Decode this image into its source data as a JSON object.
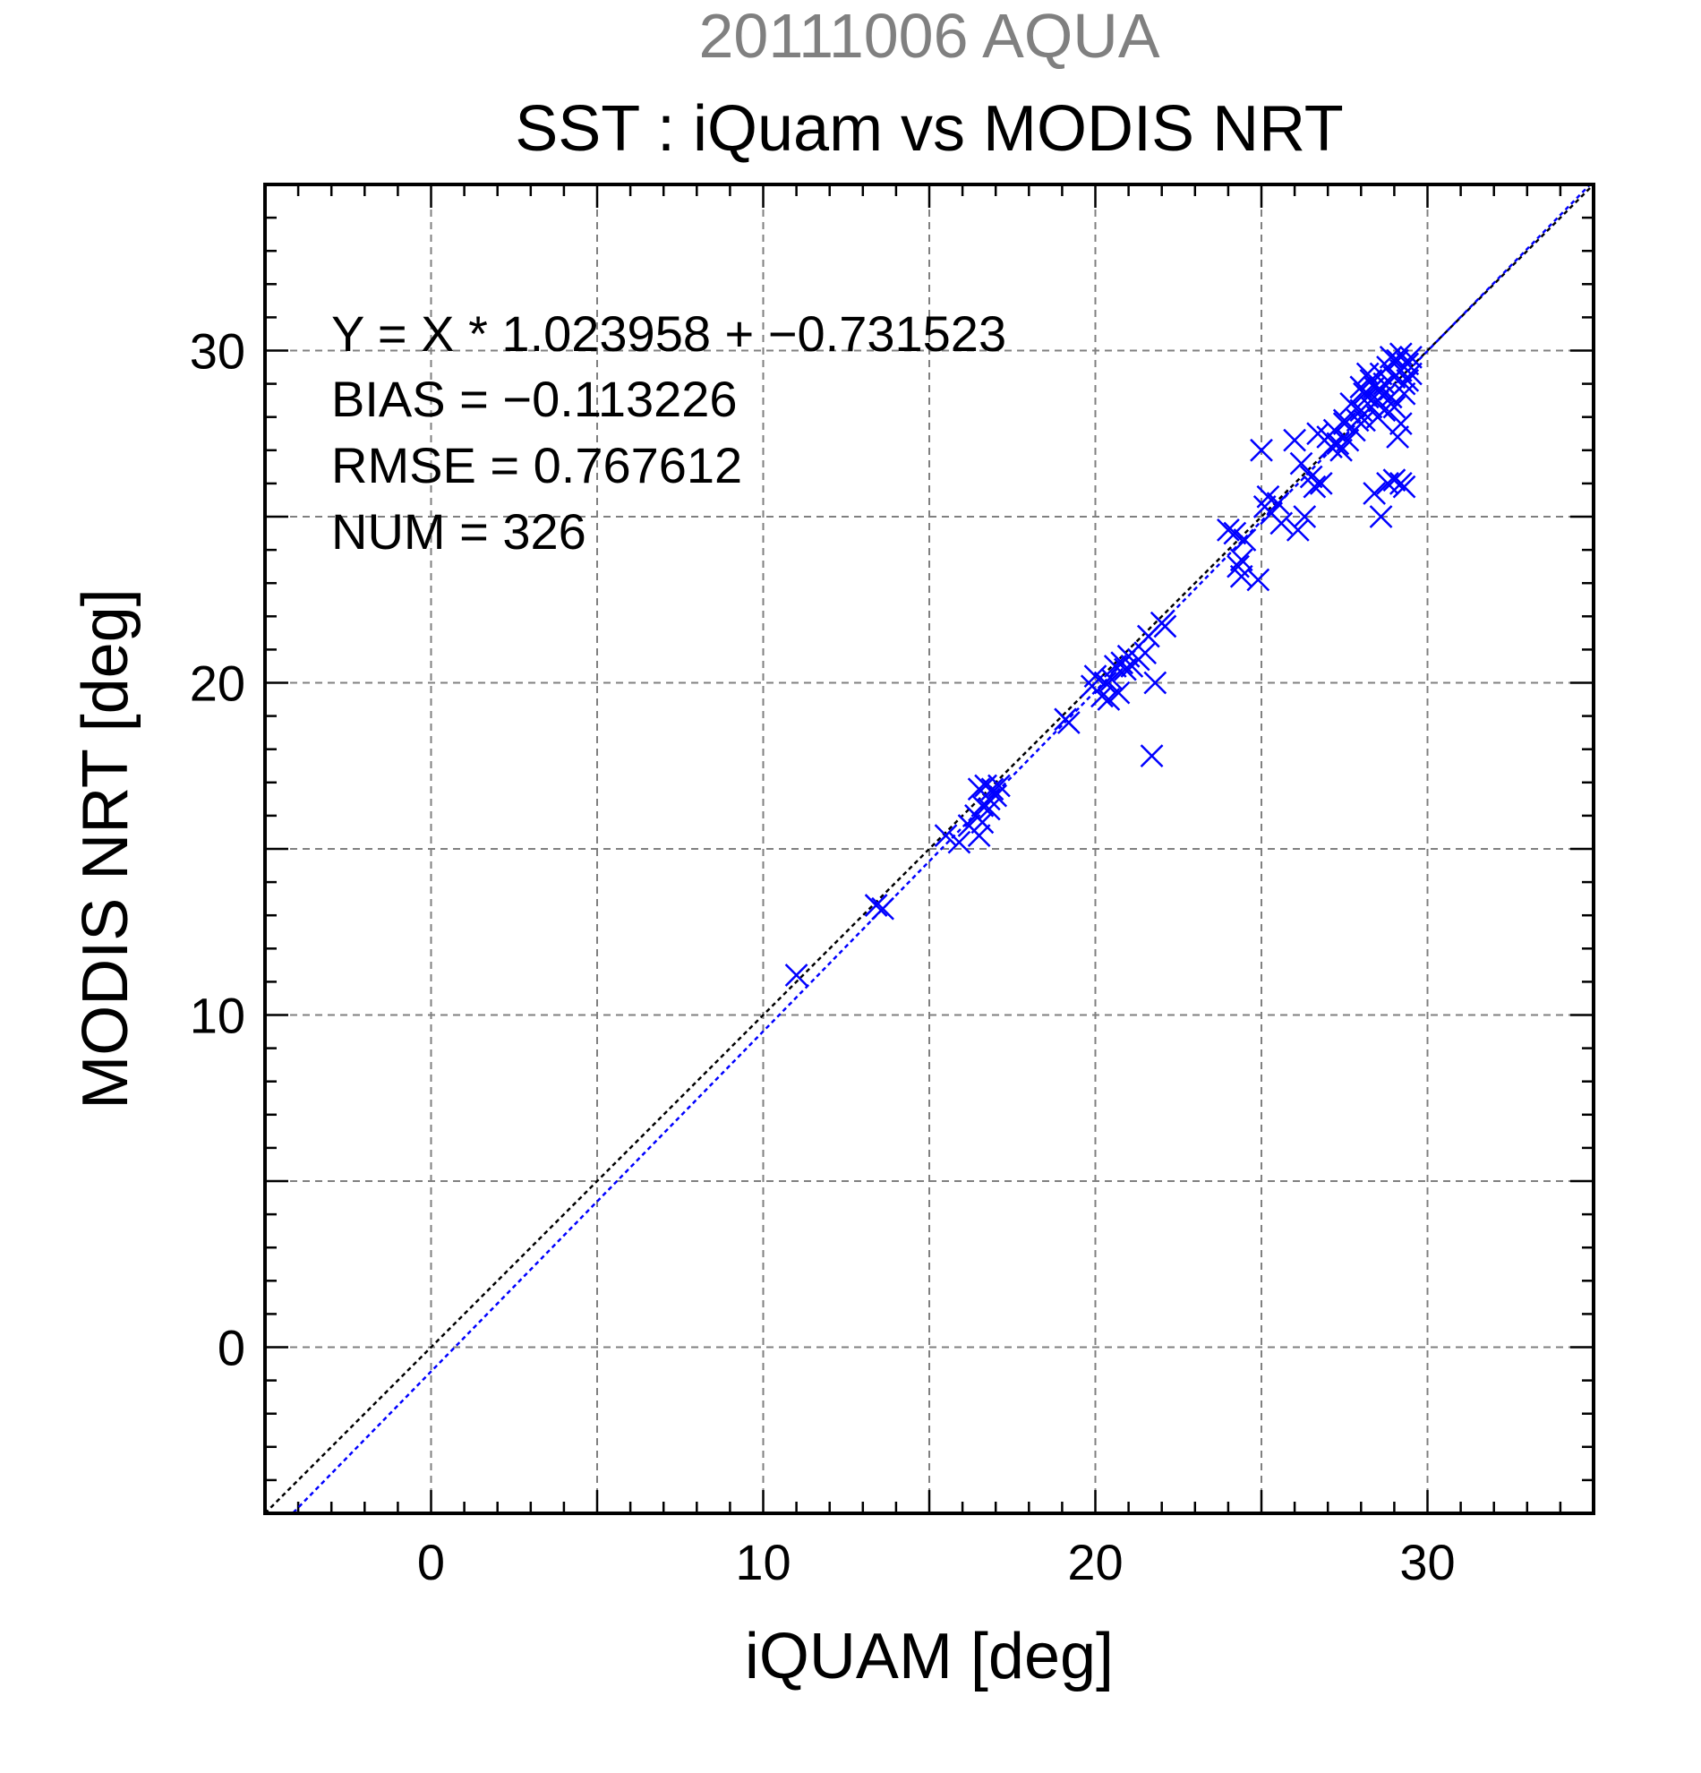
{
  "header": {
    "supertitle": "20111006 AQUA",
    "title": "SST : iQuam vs MODIS NRT"
  },
  "colors": {
    "supertitle": "#808080",
    "markers": "#0000ff",
    "identity_line": "#000000",
    "fit_line": "#0000ff",
    "grid": "#808080",
    "axes": "#000000"
  },
  "stats": {
    "equation": "Y = X * 1.023958 + −0.731523",
    "bias": "BIAS = −0.113226",
    "rmse": "RMSE = 0.767612",
    "num": "NUM = 326"
  },
  "chart_data": {
    "type": "scatter",
    "xlabel": "iQUAM [deg]",
    "ylabel": "MODIS NRT [deg]",
    "xlim": [
      -5,
      35
    ],
    "ylim": [
      -5,
      35
    ],
    "xticks": [
      0,
      10,
      20,
      30
    ],
    "yticks": [
      0,
      10,
      20,
      30
    ],
    "xtick_labels": [
      "0",
      "10",
      "20",
      "30"
    ],
    "ytick_labels": [
      "0",
      "10",
      "20",
      "30"
    ],
    "grid": true,
    "marker": "x",
    "fit": {
      "slope": 1.023958,
      "intercept": -0.731523
    },
    "identity": {
      "slope": 1,
      "intercept": 0
    },
    "points": [
      [
        11.0,
        11.2
      ],
      [
        13.4,
        13.3
      ],
      [
        13.6,
        13.2
      ],
      [
        15.5,
        15.4
      ],
      [
        15.9,
        15.2
      ],
      [
        16.2,
        15.7
      ],
      [
        16.4,
        16.0
      ],
      [
        16.5,
        15.4
      ],
      [
        16.6,
        15.8
      ],
      [
        16.5,
        16.8
      ],
      [
        16.7,
        16.9
      ],
      [
        16.8,
        16.5
      ],
      [
        16.9,
        16.8
      ],
      [
        17.0,
        16.6
      ],
      [
        17.1,
        16.9
      ],
      [
        16.6,
        16.3
      ],
      [
        16.8,
        16.2
      ],
      [
        19.1,
        18.9
      ],
      [
        19.2,
        18.8
      ],
      [
        19.9,
        19.9
      ],
      [
        20.0,
        20.2
      ],
      [
        20.2,
        19.6
      ],
      [
        20.3,
        20.0
      ],
      [
        20.4,
        19.5
      ],
      [
        20.5,
        20.1
      ],
      [
        20.6,
        20.5
      ],
      [
        20.7,
        19.7
      ],
      [
        20.8,
        20.6
      ],
      [
        20.9,
        20.4
      ],
      [
        21.0,
        20.8
      ],
      [
        21.1,
        20.5
      ],
      [
        21.3,
        20.7
      ],
      [
        21.5,
        20.9
      ],
      [
        21.6,
        21.4
      ],
      [
        21.8,
        20.0
      ],
      [
        21.7,
        17.8
      ],
      [
        22.0,
        21.8
      ],
      [
        22.1,
        21.7
      ],
      [
        24.0,
        24.6
      ],
      [
        24.2,
        24.5
      ],
      [
        24.3,
        23.5
      ],
      [
        24.4,
        23.2
      ],
      [
        24.5,
        24.3
      ],
      [
        24.4,
        23.7
      ],
      [
        24.9,
        23.1
      ],
      [
        25.0,
        27.0
      ],
      [
        25.1,
        25.3
      ],
      [
        25.2,
        25.6
      ],
      [
        25.3,
        25.1
      ],
      [
        25.5,
        25.4
      ],
      [
        25.6,
        24.8
      ],
      [
        26.0,
        27.3
      ],
      [
        26.1,
        24.6
      ],
      [
        26.2,
        26.6
      ],
      [
        26.3,
        25.0
      ],
      [
        26.5,
        26.2
      ],
      [
        26.6,
        25.9
      ],
      [
        26.8,
        26.0
      ],
      [
        26.7,
        27.5
      ],
      [
        27.0,
        27.4
      ],
      [
        27.2,
        27.6
      ],
      [
        27.3,
        27.2
      ],
      [
        27.5,
        27.8
      ],
      [
        27.6,
        27.3
      ],
      [
        27.8,
        27.6
      ],
      [
        27.1,
        27.1
      ],
      [
        27.4,
        27.0
      ],
      [
        27.9,
        27.9
      ],
      [
        28.0,
        28.2
      ],
      [
        28.1,
        27.9
      ],
      [
        28.2,
        28.6
      ],
      [
        28.3,
        28.3
      ],
      [
        28.4,
        28.9
      ],
      [
        28.5,
        28.5
      ],
      [
        28.6,
        28.8
      ],
      [
        28.7,
        29.0
      ],
      [
        28.8,
        29.5
      ],
      [
        28.9,
        28.6
      ],
      [
        29.0,
        29.2
      ],
      [
        29.1,
        29.7
      ],
      [
        29.2,
        29.4
      ],
      [
        29.3,
        29.0
      ],
      [
        29.4,
        29.6
      ],
      [
        29.5,
        29.3
      ],
      [
        28.0,
        28.9
      ],
      [
        28.3,
        29.1
      ],
      [
        28.6,
        29.3
      ],
      [
        28.9,
        29.8
      ],
      [
        29.2,
        29.9
      ],
      [
        29.0,
        28.3
      ],
      [
        29.3,
        28.7
      ],
      [
        29.1,
        27.4
      ],
      [
        29.2,
        27.8
      ],
      [
        28.4,
        25.7
      ],
      [
        28.6,
        25.0
      ],
      [
        28.8,
        26.0
      ],
      [
        29.0,
        26.1
      ],
      [
        29.2,
        26.0
      ],
      [
        29.3,
        25.9
      ],
      [
        28.5,
        28.0
      ],
      [
        27.7,
        28.4
      ],
      [
        28.1,
        28.7
      ],
      [
        28.7,
        28.2
      ],
      [
        29.4,
        29.1
      ],
      [
        29.5,
        29.8
      ],
      [
        28.2,
        29.3
      ],
      [
        27.5,
        27.9
      ]
    ]
  }
}
